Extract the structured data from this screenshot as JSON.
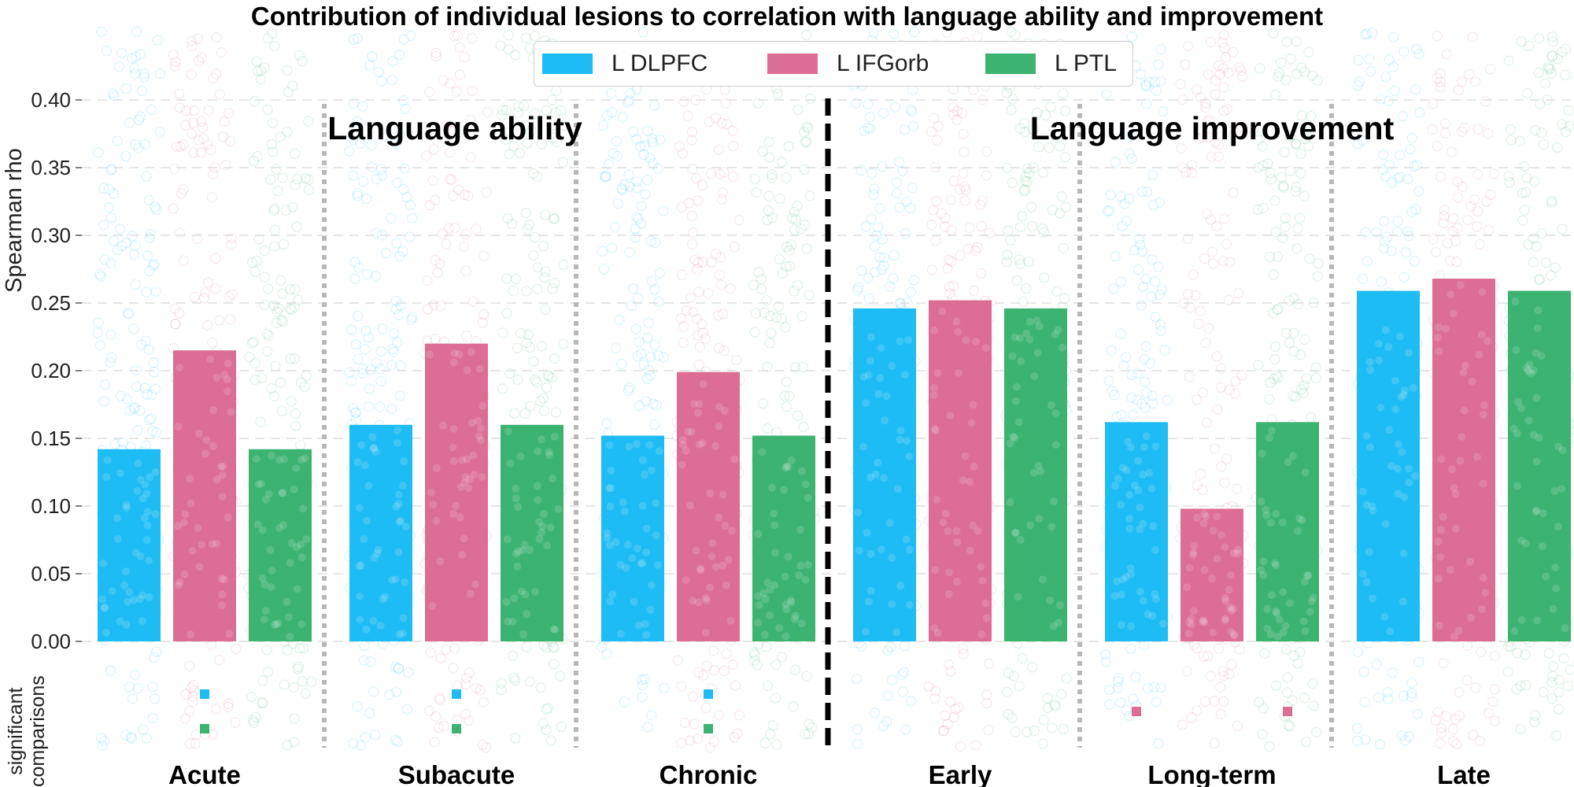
{
  "title": "Contribution of individual lesions to correlation with language ability and improvement",
  "colors": {
    "L DLPFC": "#1ebcf4",
    "L IFGorb": "#dc6d94",
    "L PTL": "#3cb371",
    "grid": "#dddddd",
    "divider_major": "#000000",
    "divider_minor": "#b8b8b8"
  },
  "legend": {
    "position": "top-center",
    "items": [
      "L DLPFC",
      "L IFGorb",
      "L PTL"
    ]
  },
  "sections": {
    "ability": "Language ability",
    "improvement": "Language improvement"
  },
  "significant_label_line1": "significant",
  "significant_label_line2": "comparisons",
  "chart_data": {
    "type": "bar",
    "title": "Contribution of individual lesions to correlation with language ability and improvement",
    "xlabel": "",
    "ylabel": "Spearman rho",
    "ylim": [
      0,
      0.4
    ],
    "yticks": [
      "0.00",
      "0.05",
      "0.10",
      "0.15",
      "0.20",
      "0.25",
      "0.30",
      "0.35",
      "0.40"
    ],
    "grid": true,
    "categories": [
      "Acute",
      "Subacute",
      "Chronic",
      "Early",
      "Long-term",
      "Late"
    ],
    "series": [
      {
        "name": "L DLPFC",
        "values": [
          0.142,
          0.16,
          0.152,
          0.246,
          0.162,
          0.259
        ]
      },
      {
        "name": "L IFGorb",
        "values": [
          0.215,
          0.22,
          0.199,
          0.252,
          0.098,
          0.268
        ]
      },
      {
        "name": "L PTL",
        "values": [
          0.142,
          0.16,
          0.152,
          0.246,
          0.162,
          0.259
        ]
      }
    ],
    "significant_comparisons": [
      {
        "category": "Acute",
        "markers": [
          "L DLPFC",
          "L PTL"
        ]
      },
      {
        "category": "Subacute",
        "markers": [
          "L DLPFC",
          "L PTL"
        ]
      },
      {
        "category": "Chronic",
        "markers": [
          "L DLPFC",
          "L PTL"
        ]
      },
      {
        "category": "Early",
        "markers": []
      },
      {
        "category": "Long-term",
        "markers": [
          "L IFGorb",
          "L IFGorb"
        ]
      },
      {
        "category": "Late",
        "markers": []
      }
    ]
  }
}
